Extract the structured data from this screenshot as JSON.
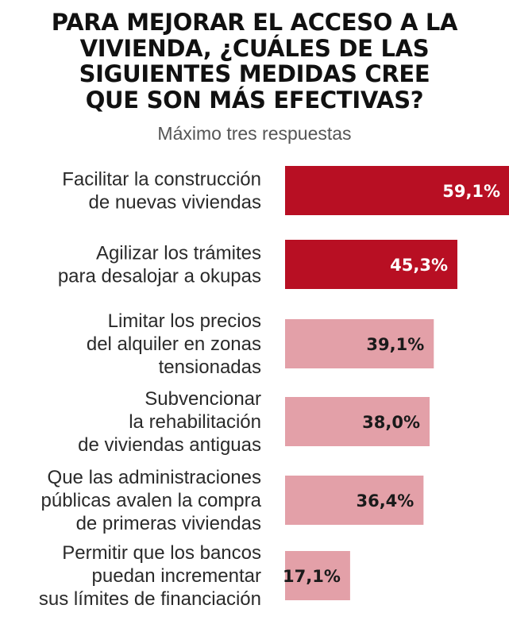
{
  "title_lines": [
    "PARA MEJORAR EL ACCESO A LA",
    "VIVIENDA, ¿CUÁLES DE LAS",
    "SIGUIENTES MEDIDAS CREE",
    "QUE SON MÁS EFECTIVAS?"
  ],
  "subtitle": "Máximo tres respuestas",
  "colors": {
    "highlight_bar": "#b80f23",
    "normal_bar": "#e3a0a8",
    "highlight_text": "#ffffff",
    "normal_text": "#1a1a1a"
  },
  "chart_data": {
    "type": "bar",
    "orientation": "horizontal",
    "title": "PARA MEJORAR EL ACCESO A LA VIVIENDA, ¿CUÁLES DE LAS SIGUIENTES MEDIDAS CREE QUE SON MÁS EFECTIVAS?",
    "subtitle": "Máximo tres respuestas",
    "categories": [
      [
        "Facilitar la construcción",
        "de nuevas viviendas"
      ],
      [
        "Agilizar los trámites",
        "para desalojar a okupas"
      ],
      [
        "Limitar los precios",
        "del alquiler en zonas",
        "tensionadas"
      ],
      [
        "Subvencionar",
        "la rehabilitación",
        "de viviendas antiguas"
      ],
      [
        "Que las administraciones",
        "públicas avalen la compra",
        "de primeras viviendas"
      ],
      [
        "Permitir que los bancos",
        "puedan incrementar",
        "sus límites de financiación"
      ]
    ],
    "values": [
      59.1,
      45.3,
      39.1,
      38.0,
      36.4,
      17.1
    ],
    "value_labels": [
      "59,1%",
      "45,3%",
      "39,1%",
      "38,0%",
      "36,4%",
      "17,1%"
    ],
    "highlighted": [
      true,
      true,
      false,
      false,
      false,
      false
    ],
    "unit": "%",
    "axis_visible": false,
    "grid": false
  }
}
